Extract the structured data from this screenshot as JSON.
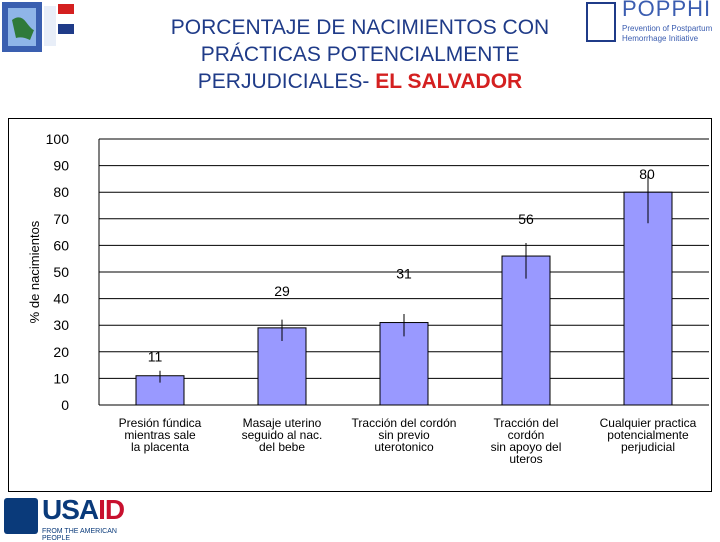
{
  "title": {
    "line1": "PORCENTAJE DE NACIMIENTOS CON",
    "line2": "PRÁCTICAS POTENCIALMENTE",
    "line3_prefix": "PERJUDICIALES-",
    "line3_highlight": "EL SALVADOR"
  },
  "logos": {
    "right_name": "POPPHI",
    "right_sub": "Prevention of Postpartum Hemorrhage Initiative",
    "bottom_name_prefix": "USA",
    "bottom_name_suffix": "ID",
    "bottom_tag": "FROM THE AMERICAN PEOPLE"
  },
  "colors": {
    "title": "#1f3b88",
    "highlight": "#d42020",
    "bar_fill": "#9999ff",
    "bar_stroke": "#000000"
  },
  "chart_data": {
    "type": "bar",
    "ylabel": "% de nacimientos",
    "ylim": [
      0,
      100
    ],
    "yticks": [
      0,
      10,
      20,
      30,
      40,
      50,
      60,
      70,
      80,
      90,
      100
    ],
    "gridlines": true,
    "categories": [
      [
        "Presión fúndica",
        "mientras sale",
        "la placenta"
      ],
      [
        "Masaje uterino",
        "seguido al nac.",
        "del bebe"
      ],
      [
        "Tracción del cordón",
        "sin previo",
        "uterotonico"
      ],
      [
        "Tracción del",
        "cordón",
        "sin apoyo del",
        "uteros"
      ],
      [
        "Cualquier practica",
        "potencialmente",
        "perjudicial"
      ]
    ],
    "values": [
      11,
      29,
      31,
      56,
      80
    ],
    "data_labels": [
      "11",
      "29",
      "31",
      "56",
      "80"
    ]
  }
}
